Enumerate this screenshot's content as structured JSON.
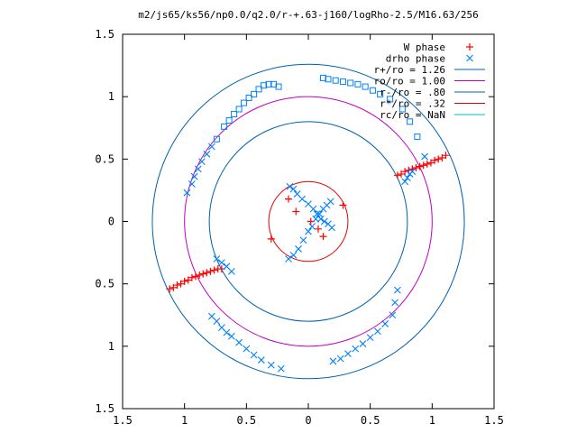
{
  "chart_data": {
    "type": "scatter",
    "title": "m2/js65/ks56/np0.0/q2.0/r-+.63-j160/logRho-2.5/M16.63/256",
    "xlabel": "",
    "ylabel": "",
    "xlim": [
      -1.5,
      1.5
    ],
    "ylim": [
      -1.5,
      1.5
    ],
    "grid": false,
    "legend_position": "top-right",
    "x_ticks": [
      -1.5,
      -1,
      -0.5,
      0,
      0.5,
      1,
      1.5
    ],
    "x_tick_labels": [
      "1.5",
      "1",
      "0.5",
      "0",
      "0.5",
      "1",
      "1.5"
    ],
    "y_ticks": [
      1.5,
      1,
      0.5,
      0,
      -0.5,
      -1,
      -1.5
    ],
    "y_tick_labels": [
      "1.5",
      "1",
      "0.5",
      "0",
      "0.5",
      "1",
      "1.5"
    ],
    "series": [
      {
        "name": "W phase",
        "kind": "points",
        "marker": "plus",
        "color": "#ff0000",
        "x": [
          -1.12,
          -1.09,
          -1.06,
          -1.03,
          -1.0,
          -0.97,
          -0.94,
          -0.91,
          -0.88,
          -0.85,
          -0.82,
          -0.79,
          -0.76,
          -0.73,
          -0.7,
          0.72,
          0.75,
          0.78,
          0.81,
          0.84,
          0.87,
          0.9,
          0.93,
          0.96,
          0.99,
          1.02,
          1.05,
          1.08,
          1.11,
          -0.3,
          0.28,
          -0.16,
          -0.1,
          0.02,
          0.08,
          0.12
        ],
        "y": [
          -0.54,
          -0.53,
          -0.51,
          -0.5,
          -0.48,
          -0.47,
          -0.45,
          -0.44,
          -0.43,
          -0.42,
          -0.41,
          -0.4,
          -0.39,
          -0.38,
          -0.38,
          0.37,
          0.38,
          0.4,
          0.41,
          0.42,
          0.43,
          0.44,
          0.45,
          0.46,
          0.47,
          0.49,
          0.5,
          0.51,
          0.53,
          -0.14,
          0.13,
          0.18,
          0.08,
          0.0,
          -0.06,
          -0.12
        ]
      },
      {
        "name": "drho phase",
        "kind": "points",
        "marker": "cross-and-square",
        "color": "#0080ff",
        "x": [
          -0.98,
          -0.94,
          -0.92,
          -0.89,
          -0.86,
          -0.82,
          -0.78,
          -0.74,
          -0.68,
          -0.64,
          -0.6,
          -0.56,
          -0.52,
          -0.48,
          -0.44,
          -0.4,
          -0.36,
          -0.32,
          -0.28,
          -0.24,
          0.12,
          0.16,
          0.22,
          0.28,
          0.34,
          0.4,
          0.46,
          0.52,
          0.58,
          0.66,
          0.76,
          0.82,
          0.88,
          0.94,
          -0.78,
          -0.74,
          -0.7,
          -0.66,
          -0.62,
          -0.56,
          -0.5,
          -0.44,
          -0.38,
          -0.3,
          -0.22,
          0.2,
          0.26,
          0.32,
          0.38,
          0.44,
          0.5,
          0.56,
          0.62,
          0.68,
          0.7,
          0.72,
          -0.15,
          -0.12,
          -0.09,
          -0.05,
          0.0,
          0.04,
          0.07,
          0.1,
          0.13,
          0.16,
          0.19,
          -0.16,
          -0.12,
          -0.08,
          -0.04,
          0.0,
          0.03,
          0.06,
          0.09,
          0.12,
          0.15,
          0.18,
          -0.74,
          -0.7,
          -0.66,
          -0.62,
          0.78,
          0.8,
          0.82,
          0.84
        ],
        "y": [
          0.23,
          0.3,
          0.36,
          0.42,
          0.48,
          0.54,
          0.6,
          0.66,
          0.76,
          0.81,
          0.86,
          0.9,
          0.95,
          0.99,
          1.02,
          1.06,
          1.09,
          1.1,
          1.1,
          1.08,
          1.15,
          1.14,
          1.13,
          1.12,
          1.11,
          1.1,
          1.08,
          1.05,
          1.02,
          0.98,
          0.9,
          0.8,
          0.68,
          0.52,
          -0.76,
          -0.8,
          -0.85,
          -0.89,
          -0.92,
          -0.97,
          -1.02,
          -1.07,
          -1.11,
          -1.15,
          -1.18,
          -1.12,
          -1.1,
          -1.06,
          -1.02,
          -0.98,
          -0.93,
          -0.88,
          -0.82,
          -0.75,
          -0.65,
          -0.55,
          0.28,
          0.26,
          0.22,
          0.18,
          0.14,
          0.1,
          0.06,
          0.02,
          0.0,
          -0.02,
          -0.05,
          -0.3,
          -0.27,
          -0.22,
          -0.15,
          -0.08,
          -0.04,
          0.02,
          0.06,
          0.1,
          0.13,
          0.16,
          -0.3,
          -0.33,
          -0.36,
          -0.4,
          0.32,
          0.35,
          0.38,
          0.4
        ]
      },
      {
        "name": "r+/ro = 1.26",
        "kind": "circle",
        "radius": 1.26,
        "color": "#0060ad"
      },
      {
        "name": "ro/ro = 1.00",
        "kind": "circle",
        "radius": 1.0,
        "color": "#c000c0"
      },
      {
        "name": "r-/ro = .80",
        "kind": "circle",
        "radius": 0.8,
        "color": "#0060ad"
      },
      {
        "name": "r*/ro = .32",
        "kind": "circle",
        "radius": 0.32,
        "color": "#e00000"
      },
      {
        "name": "rc/ro = NaN",
        "kind": "circle",
        "radius": null,
        "color": "#00c0c0"
      }
    ]
  }
}
